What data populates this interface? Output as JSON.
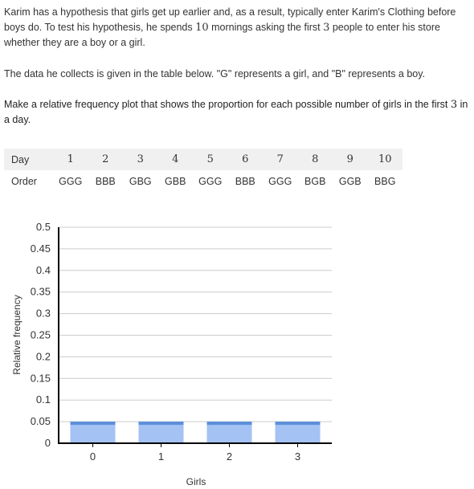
{
  "problem": {
    "intro_before_10": "Karim has a hypothesis that girls get up earlier and, as a result, typically enter Karim's Clothing before boys do. To test his hypothesis, he spends ",
    "mornings_count": "10",
    "intro_between": " mornings asking the first ",
    "people_count": "3",
    "intro_after": " people to enter his store whether they are a boy or a girl.",
    "data_note": "The data he collects is given in the table below. \"G\" represents a girl, and \"B\" represents a boy.",
    "task_before": "Make a relative frequency plot that shows the proportion for each possible number of girls in the first ",
    "task_count": "3",
    "task_after": " in a day."
  },
  "table": {
    "day_label": "Day",
    "order_label": "Order",
    "days": [
      "1",
      "2",
      "3",
      "4",
      "5",
      "6",
      "7",
      "8",
      "9",
      "10"
    ],
    "orders": [
      "GGG",
      "BBB",
      "GBG",
      "GBB",
      "GGG",
      "BBB",
      "GGG",
      "BGB",
      "GGB",
      "BBG"
    ]
  },
  "chart_data": {
    "type": "bar",
    "categories": [
      "0",
      "1",
      "2",
      "3"
    ],
    "values": [
      0.05,
      0.05,
      0.05,
      0.05
    ],
    "xlabel": "Girls",
    "ylabel": "Relative frequency",
    "ylim": [
      0,
      0.5
    ],
    "yticks": [
      "0",
      "0.05",
      "0.1",
      "0.15",
      "0.2",
      "0.25",
      "0.3",
      "0.35",
      "0.4",
      "0.45",
      "0.5"
    ],
    "grid": true,
    "bar_color": "#a4c2f4",
    "bar_top_color": "#5b8fd9"
  }
}
